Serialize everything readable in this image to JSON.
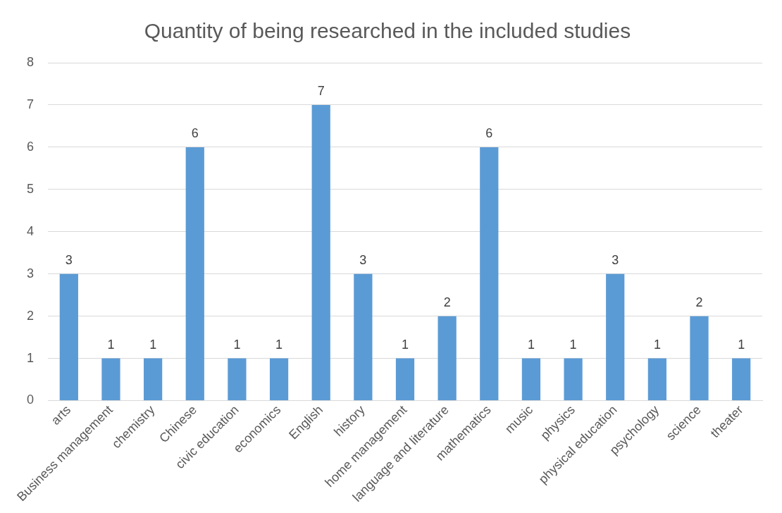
{
  "chart_data": {
    "type": "bar",
    "title": "Quantity of being researched in the included studies",
    "categories": [
      "arts",
      "Business management",
      "chemistry",
      "Chinese",
      "civic education",
      "economics",
      "English",
      "history",
      "home management",
      "language and literature",
      "mathematics",
      "music",
      "physics",
      "physical education",
      "psychology",
      "science",
      "theater"
    ],
    "values": [
      3,
      1,
      1,
      6,
      1,
      1,
      7,
      3,
      1,
      2,
      6,
      1,
      1,
      3,
      1,
      2,
      1
    ],
    "color": "#5b9bd5",
    "ylim": [
      0,
      8
    ],
    "yticks": [
      0,
      1,
      2,
      3,
      4,
      5,
      6,
      7,
      8
    ],
    "grid": "y",
    "data_labels": true,
    "legend": false
  }
}
